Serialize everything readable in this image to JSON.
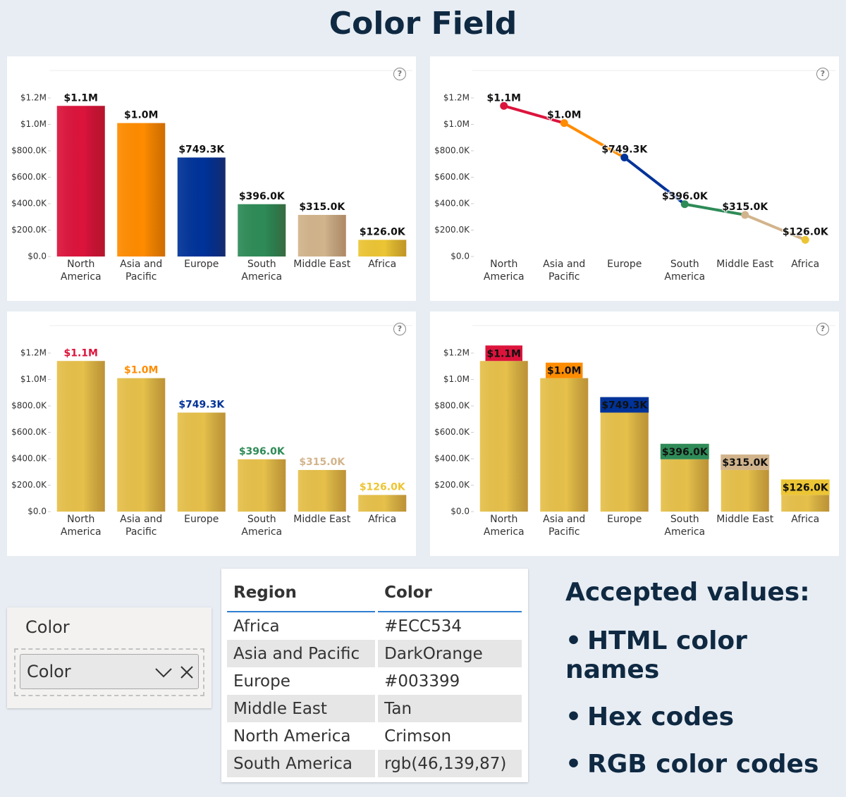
{
  "title": "Color Field",
  "chart_data": [
    {
      "type": "bar",
      "color_target": "bars",
      "categories": [
        "North America",
        "Asia and Pacific",
        "Europe",
        "South America",
        "Middle East",
        "Africa"
      ],
      "values": [
        1140000,
        1010000,
        749300,
        396000,
        315000,
        126000
      ],
      "value_labels": [
        "$1.1M",
        "$1.0M",
        "$749.3K",
        "$396.0K",
        "$315.0K",
        "$126.0K"
      ],
      "colors": [
        "Crimson",
        "DarkOrange",
        "#003399",
        "rgb(46,139,87)",
        "Tan",
        "#ECC534"
      ],
      "ylim": [
        0,
        1200000
      ],
      "yticks": [
        {
          "value": 0,
          "label": "$0.0"
        },
        {
          "value": 200000,
          "label": "$200.0K"
        },
        {
          "value": 400000,
          "label": "$400.0K"
        },
        {
          "value": 600000,
          "label": "$600.0K"
        },
        {
          "value": 800000,
          "label": "$800.0K"
        },
        {
          "value": 1000000,
          "label": "$1.0M"
        },
        {
          "value": 1200000,
          "label": "$1.2M"
        }
      ]
    },
    {
      "type": "line",
      "color_target": "line",
      "categories": [
        "North America",
        "Asia and Pacific",
        "Europe",
        "South America",
        "Middle East",
        "Africa"
      ],
      "values": [
        1140000,
        1010000,
        749300,
        396000,
        315000,
        126000
      ],
      "value_labels": [
        "$1.1M",
        "$1.0M",
        "$749.3K",
        "$396.0K",
        "$315.0K",
        "$126.0K"
      ],
      "colors": [
        "Crimson",
        "DarkOrange",
        "#003399",
        "rgb(46,139,87)",
        "Tan",
        "#ECC534"
      ],
      "ylim": [
        0,
        1200000
      ],
      "yticks": [
        {
          "value": 0,
          "label": "$0.0"
        },
        {
          "value": 200000,
          "label": "$200.0K"
        },
        {
          "value": 400000,
          "label": "$400.0K"
        },
        {
          "value": 600000,
          "label": "$600.0K"
        },
        {
          "value": 800000,
          "label": "$800.0K"
        },
        {
          "value": 1000000,
          "label": "$1.0M"
        },
        {
          "value": 1200000,
          "label": "$1.2M"
        }
      ]
    },
    {
      "type": "bar",
      "color_target": "labels",
      "bar_color": "#E6C04A",
      "categories": [
        "North America",
        "Asia and Pacific",
        "Europe",
        "South America",
        "Middle East",
        "Africa"
      ],
      "values": [
        1140000,
        1010000,
        749300,
        396000,
        315000,
        126000
      ],
      "value_labels": [
        "$1.1M",
        "$1.0M",
        "$749.3K",
        "$396.0K",
        "$315.0K",
        "$126.0K"
      ],
      "colors": [
        "Crimson",
        "DarkOrange",
        "#003399",
        "rgb(46,139,87)",
        "Tan",
        "#ECC534"
      ],
      "ylim": [
        0,
        1200000
      ],
      "yticks": [
        {
          "value": 0,
          "label": "$0.0"
        },
        {
          "value": 200000,
          "label": "$200.0K"
        },
        {
          "value": 400000,
          "label": "$400.0K"
        },
        {
          "value": 600000,
          "label": "$600.0K"
        },
        {
          "value": 800000,
          "label": "$800.0K"
        },
        {
          "value": 1000000,
          "label": "$1.0M"
        },
        {
          "value": 1200000,
          "label": "$1.2M"
        }
      ]
    },
    {
      "type": "bar",
      "color_target": "label_backgrounds",
      "bar_color": "#E6C04A",
      "categories": [
        "North America",
        "Asia and Pacific",
        "Europe",
        "South America",
        "Middle East",
        "Africa"
      ],
      "values": [
        1140000,
        1010000,
        749300,
        396000,
        315000,
        126000
      ],
      "value_labels": [
        "$1.1M",
        "$1.0M",
        "$749.3K",
        "$396.0K",
        "$315.0K",
        "$126.0K"
      ],
      "colors": [
        "Crimson",
        "DarkOrange",
        "#003399",
        "rgb(46,139,87)",
        "Tan",
        "#ECC534"
      ],
      "ylim": [
        0,
        1200000
      ],
      "yticks": [
        {
          "value": 0,
          "label": "$0.0"
        },
        {
          "value": 200000,
          "label": "$200.0K"
        },
        {
          "value": 400000,
          "label": "$400.0K"
        },
        {
          "value": 600000,
          "label": "$600.0K"
        },
        {
          "value": 800000,
          "label": "$800.0K"
        },
        {
          "value": 1000000,
          "label": "$1.0M"
        },
        {
          "value": 1200000,
          "label": "$1.2M"
        }
      ]
    }
  ],
  "field_well": {
    "label": "Color",
    "field": "Color"
  },
  "table": {
    "columns": [
      "Region",
      "Color"
    ],
    "rows": [
      [
        "Africa",
        "#ECC534"
      ],
      [
        "Asia and Pacific",
        "DarkOrange"
      ],
      [
        "Europe",
        "#003399"
      ],
      [
        "Middle East",
        "Tan"
      ],
      [
        "North America",
        "Crimson"
      ],
      [
        "South America",
        "rgb(46,139,87)"
      ]
    ]
  },
  "notes": {
    "heading": "Accepted values:",
    "items": [
      "HTML color names",
      "Hex codes",
      "RGB color codes"
    ]
  }
}
